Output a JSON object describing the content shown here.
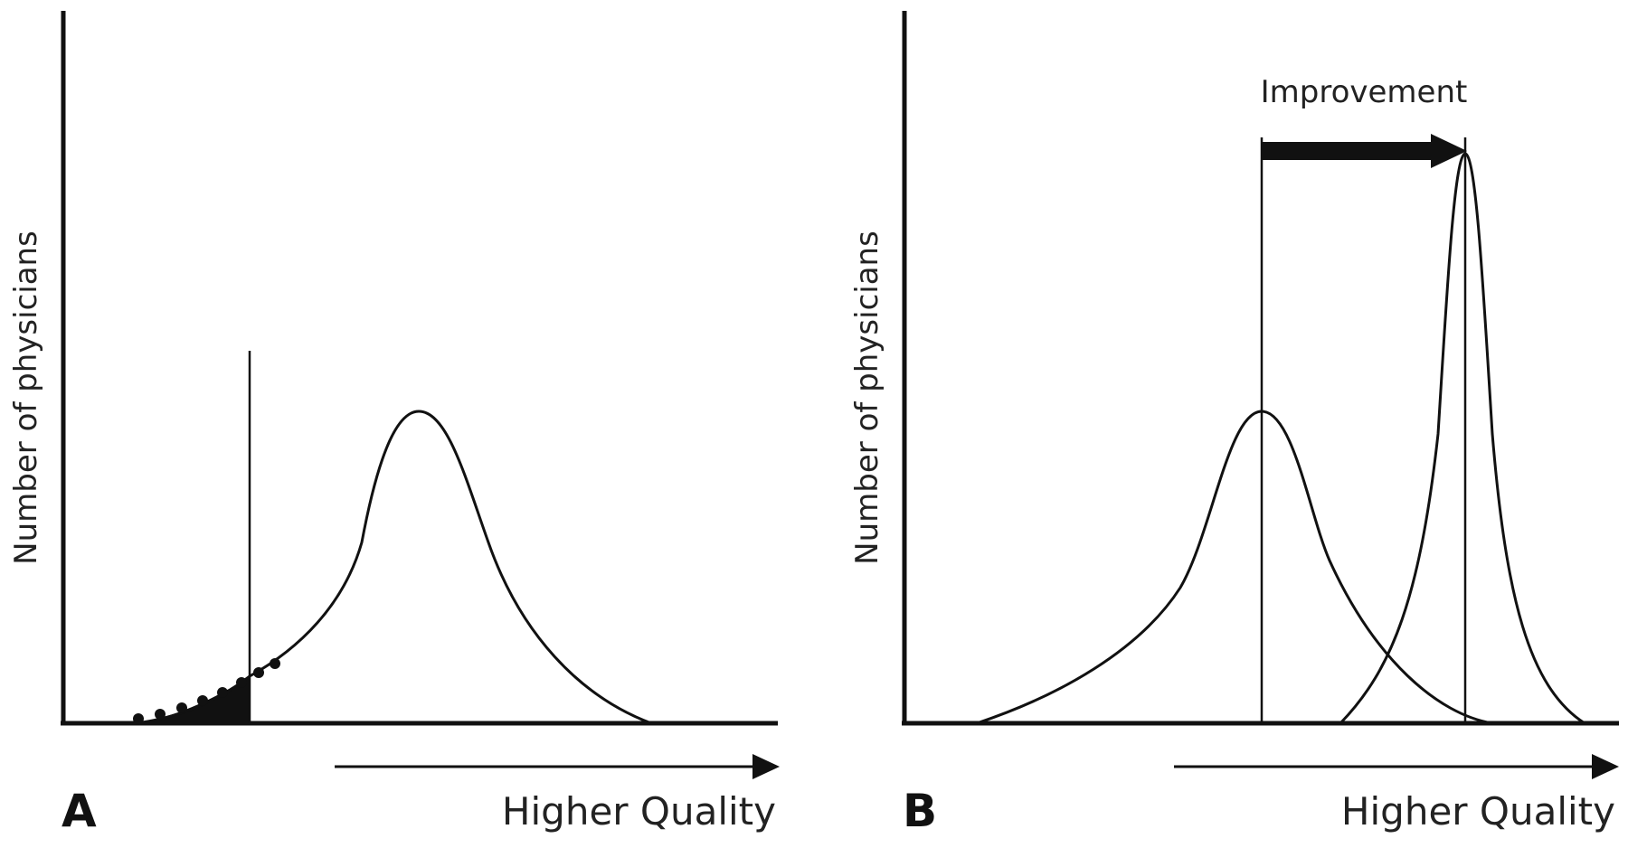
{
  "figure": {
    "panels": [
      {
        "letter": "A",
        "y_axis_label": "Number of physicians",
        "x_axis_label": "Higher Quality"
      },
      {
        "letter": "B",
        "y_axis_label": "Number of physicians",
        "x_axis_label": "Higher Quality",
        "annotation": "Improvement"
      }
    ],
    "colors": {
      "ink": "#111111",
      "text": "#222222",
      "background": "#ffffff"
    }
  }
}
